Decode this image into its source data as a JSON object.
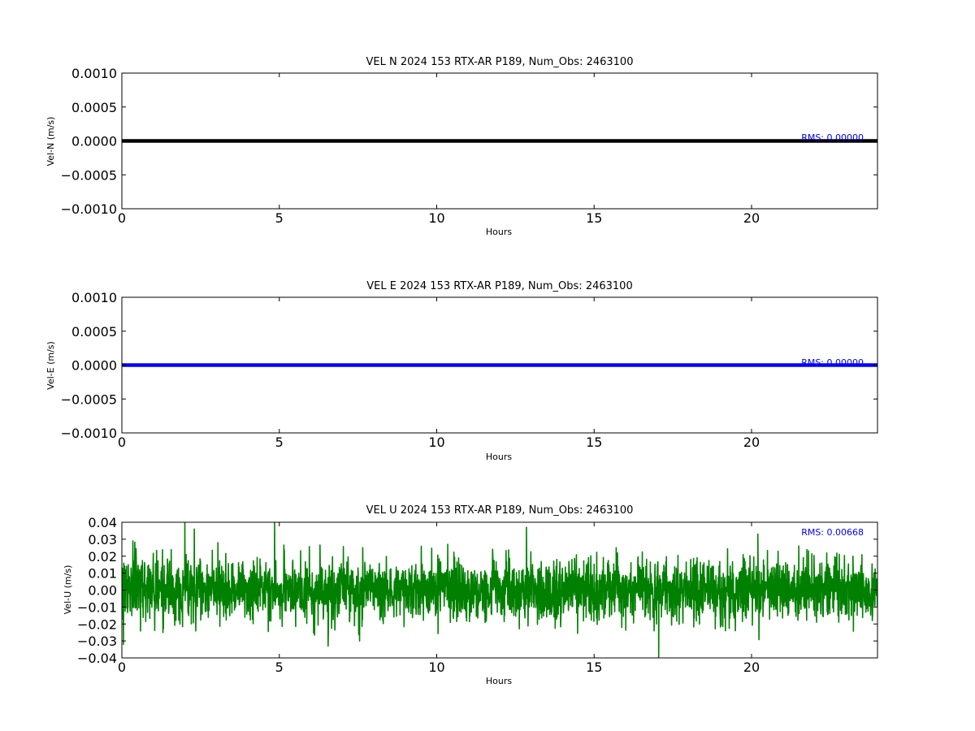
{
  "chart_data": [
    {
      "type": "line",
      "title": "VEL N 2024 153 RTX-AR  P189, Num_Obs: 2463100",
      "xlabel": "Hours",
      "ylabel": "Vel-N (m/s)",
      "xlim": [
        0,
        24
      ],
      "ylim": [
        -0.001,
        0.001
      ],
      "xticks": [
        0,
        5,
        10,
        15,
        20
      ],
      "xtick_labels": [
        "0",
        "5",
        "10",
        "15",
        "20"
      ],
      "yticks": [
        -0.001,
        -0.0005,
        0,
        0.0005,
        0.001
      ],
      "ytick_labels": [
        "−0.0010",
        "−0.0005",
        "0.0000",
        "0.0005",
        "0.0010"
      ],
      "grid": false,
      "series": [
        {
          "color": "#000000",
          "x": [
            0,
            24
          ],
          "y": [
            0,
            0
          ]
        }
      ],
      "annotation": {
        "text": "RMS:  0.00000",
        "color": "#0000ff"
      }
    },
    {
      "type": "line",
      "title": "VEL E 2024 153 RTX-AR  P189, Num_Obs: 2463100",
      "xlabel": "Hours",
      "ylabel": "Vel-E (m/s)",
      "xlim": [
        0,
        24
      ],
      "ylim": [
        -0.001,
        0.001
      ],
      "xticks": [
        0,
        5,
        10,
        15,
        20
      ],
      "xtick_labels": [
        "0",
        "5",
        "10",
        "15",
        "20"
      ],
      "yticks": [
        -0.001,
        -0.0005,
        0,
        0.0005,
        0.001
      ],
      "ytick_labels": [
        "−0.0010",
        "−0.0005",
        "0.0000",
        "0.0005",
        "0.0010"
      ],
      "grid": false,
      "series": [
        {
          "color": "#0000ff",
          "x": [
            0,
            24
          ],
          "y": [
            0,
            0
          ]
        }
      ],
      "annotation": {
        "text": "RMS:  0.00000",
        "color": "#0000ff"
      }
    },
    {
      "type": "line",
      "title": "VEL U 2024 153 RTX-AR  P189, Num_Obs: 2463100",
      "xlabel": "Hours",
      "ylabel": "Vel-U (m/s)",
      "xlim": [
        0,
        24
      ],
      "ylim": [
        -0.04,
        0.04
      ],
      "xticks": [
        0,
        5,
        10,
        15,
        20
      ],
      "xtick_labels": [
        "0",
        "5",
        "10",
        "15",
        "20"
      ],
      "yticks": [
        -0.04,
        -0.03,
        -0.02,
        -0.01,
        0,
        0.01,
        0.02,
        0.03,
        0.04
      ],
      "ytick_labels": [
        "−0.04",
        "−0.03",
        "−0.02",
        "−0.01",
        "0.00",
        "0.01",
        "0.02",
        "0.03",
        "0.04"
      ],
      "grid": false,
      "series": [
        {
          "color": "#008000",
          "x": [
            0,
            0.05,
            0.35,
            2.0,
            2.3,
            3.05,
            4.85,
            6.55,
            7.55,
            7.65,
            10.35,
            12.85,
            15.7,
            17.05,
            20.2,
            21.5,
            24
          ],
          "y": [
            0.002,
            -0.032,
            0.029,
            0.04,
            0.036,
            0.028,
            0.04,
            -0.033,
            -0.03,
            0.025,
            0.027,
            0.037,
            0.025,
            -0.04,
            0.033,
            0.026,
            0.001
          ],
          "noise_envelope_std": 0.009,
          "noise_envelope_max": 0.04
        }
      ],
      "annotation": {
        "text": "RMS:  0.00668",
        "color": "#0000ff"
      }
    }
  ]
}
